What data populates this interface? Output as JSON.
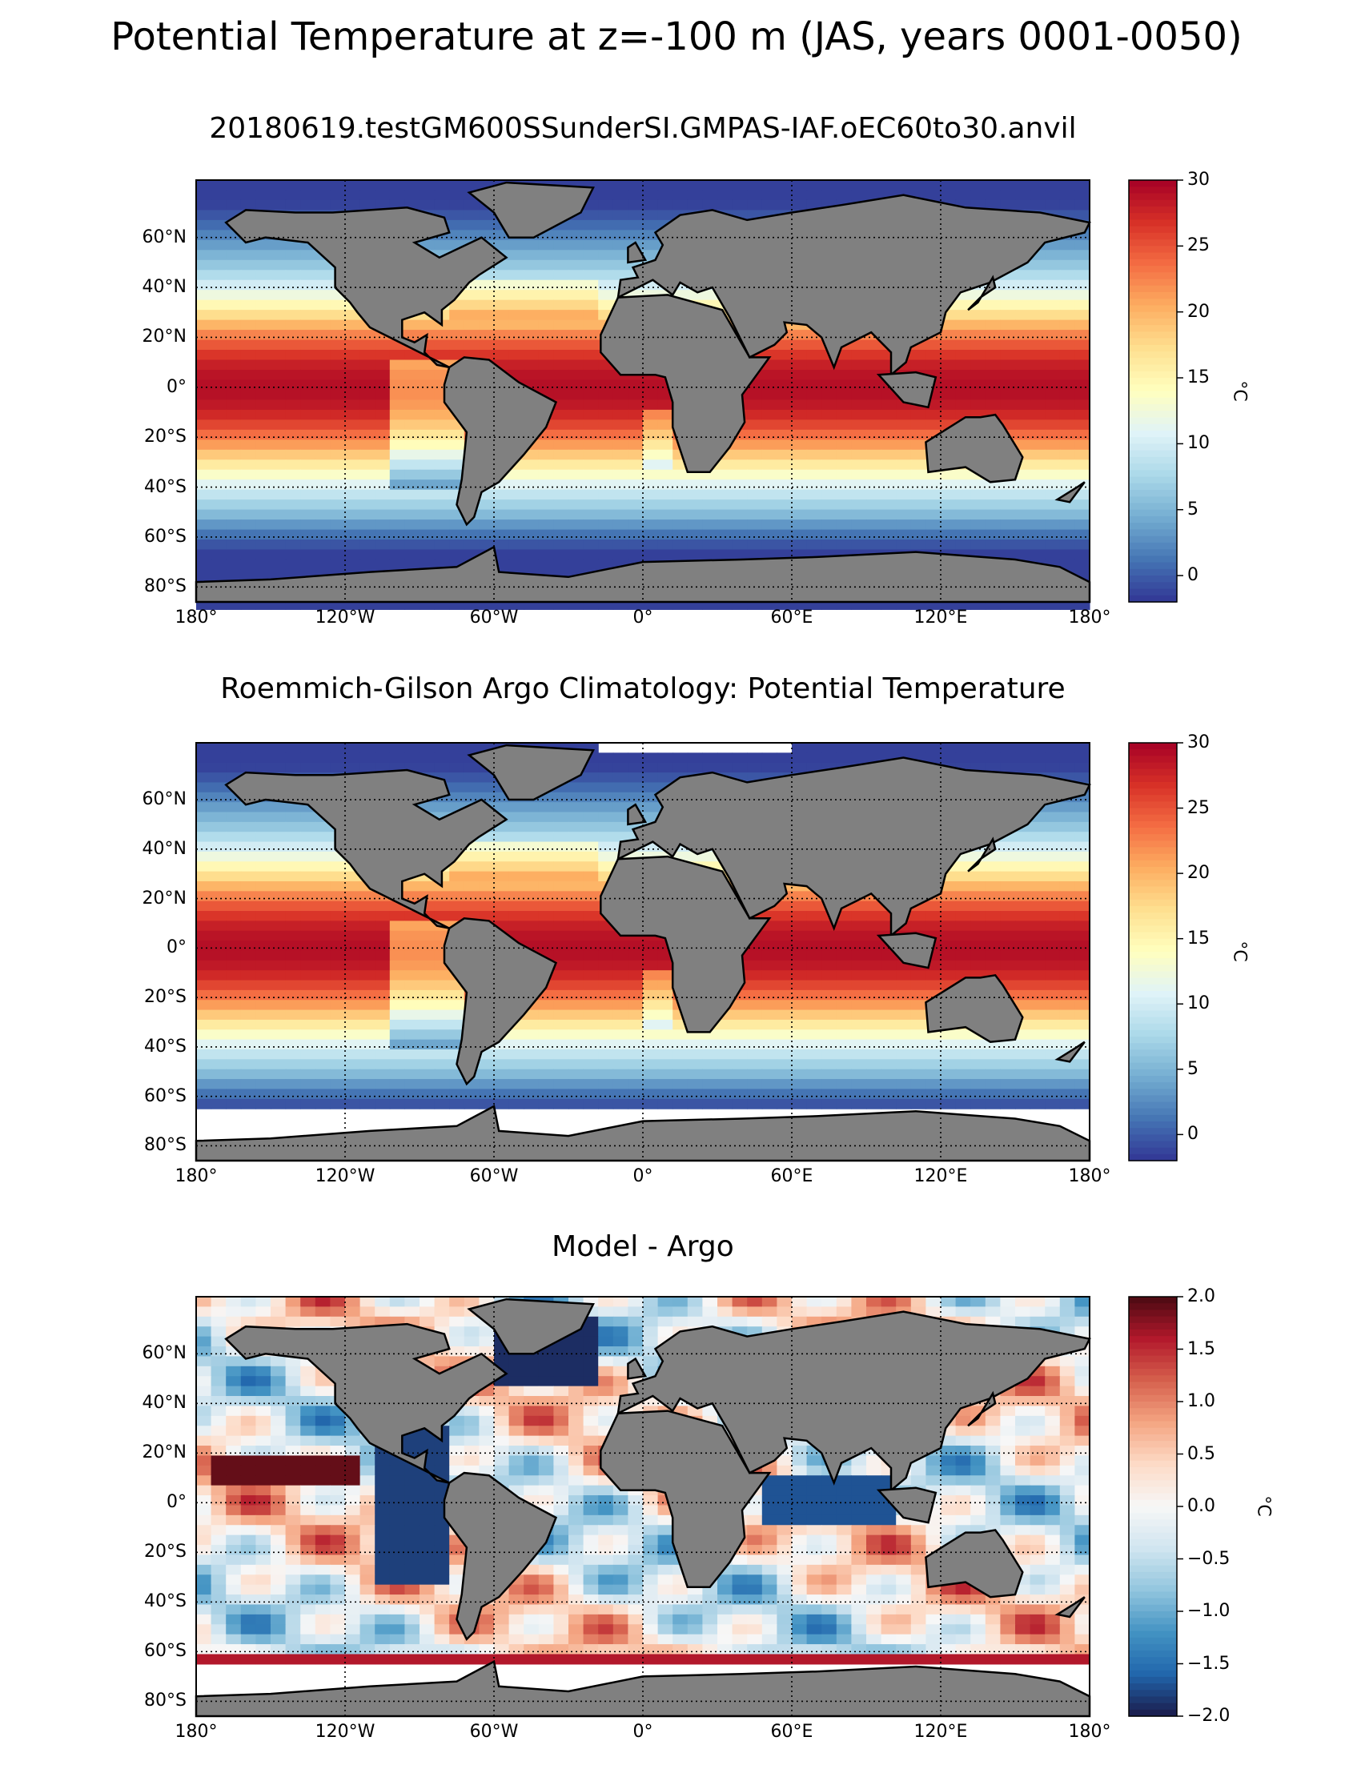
{
  "figure": {
    "title": "Potential Temperature at z=-100 m (JAS, years 0001-0050)"
  },
  "chart_data": [
    {
      "type": "heatmap",
      "title": "20180619.testGM600SSunderSI.GMPAS-IAF.oEC60to30.anvil",
      "variable": "Potential Temperature",
      "lat_ticks": [
        "60°N",
        "40°N",
        "20°N",
        "0°",
        "20°S",
        "40°S",
        "60°S",
        "80°S"
      ],
      "lon_ticks": [
        "180°",
        "120°W",
        "60°W",
        "0°",
        "60°E",
        "120°E",
        "180°"
      ],
      "grid": true,
      "colorbar": {
        "cmap": "RdYlBu_r",
        "range": [
          -2,
          30
        ],
        "ticks": [
          "30",
          "25",
          "20",
          "15",
          "10",
          "5",
          "0"
        ],
        "label": "°C"
      },
      "land_color": "#808080"
    },
    {
      "type": "heatmap",
      "title": "Roemmich-Gilson Argo Climatology: Potential Temperature",
      "variable": "Potential Temperature",
      "lat_ticks": [
        "60°N",
        "40°N",
        "20°N",
        "0°",
        "20°S",
        "40°S",
        "60°S",
        "80°S"
      ],
      "lon_ticks": [
        "180°",
        "120°W",
        "60°W",
        "0°",
        "60°E",
        "120°E",
        "180°"
      ],
      "grid": true,
      "colorbar": {
        "cmap": "RdYlBu_r",
        "range": [
          -2,
          30
        ],
        "ticks": [
          "30",
          "25",
          "20",
          "15",
          "10",
          "5",
          "0"
        ],
        "label": "°C"
      },
      "land_color": "#808080"
    },
    {
      "type": "heatmap",
      "title": "Model - Argo",
      "variable": "Potential Temperature difference",
      "lat_ticks": [
        "60°N",
        "40°N",
        "20°N",
        "0°",
        "20°S",
        "40°S",
        "60°S",
        "80°S"
      ],
      "lon_ticks": [
        "180°",
        "120°W",
        "60°W",
        "0°",
        "60°E",
        "120°E",
        "180°"
      ],
      "grid": true,
      "colorbar": {
        "cmap": "RdBu_r",
        "range": [
          -2,
          2
        ],
        "ticks": [
          "2.0",
          "1.5",
          "1.0",
          "0.5",
          "0.0",
          "−0.5",
          "−1.0",
          "−1.5",
          "−2.0"
        ],
        "label": "°C"
      },
      "land_color": "#808080"
    }
  ]
}
